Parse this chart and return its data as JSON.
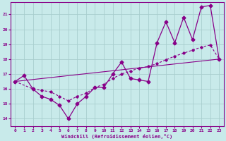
{
  "xlabel": "Windchill (Refroidissement éolien,°C)",
  "background_color": "#c8eaea",
  "grid_color": "#a8cece",
  "line_color": "#880088",
  "xlim": [
    -0.5,
    23.5
  ],
  "ylim": [
    13.5,
    21.8
  ],
  "yticks": [
    14,
    15,
    16,
    17,
    18,
    19,
    20,
    21
  ],
  "xticks": [
    0,
    1,
    2,
    3,
    4,
    5,
    6,
    7,
    8,
    9,
    10,
    11,
    12,
    13,
    14,
    15,
    16,
    17,
    18,
    19,
    20,
    21,
    22,
    23
  ],
  "series1_x": [
    0,
    1,
    2,
    3,
    4,
    5,
    6,
    7,
    8,
    9,
    10,
    11,
    12,
    13,
    14,
    15,
    16,
    17,
    18,
    19,
    20,
    21,
    22,
    23
  ],
  "series1_y": [
    16.5,
    16.9,
    16.0,
    15.5,
    15.3,
    14.9,
    14.0,
    15.0,
    15.5,
    16.1,
    16.1,
    17.0,
    17.8,
    16.7,
    16.6,
    16.5,
    19.1,
    20.5,
    19.1,
    20.8,
    19.3,
    21.5,
    21.6,
    18.0
  ],
  "series2_x": [
    0,
    2,
    3,
    4,
    5,
    6,
    7,
    8,
    9,
    10,
    11,
    12,
    13,
    14,
    15,
    16,
    17,
    18,
    19,
    20,
    21,
    22,
    23
  ],
  "series2_y": [
    16.5,
    16.0,
    15.9,
    15.8,
    15.5,
    15.2,
    15.5,
    15.7,
    16.1,
    16.3,
    16.7,
    17.0,
    17.2,
    17.4,
    17.5,
    17.7,
    17.95,
    18.2,
    18.4,
    18.6,
    18.8,
    18.95,
    18.0
  ],
  "series3_x": [
    0,
    23
  ],
  "series3_y": [
    16.5,
    18.0
  ]
}
